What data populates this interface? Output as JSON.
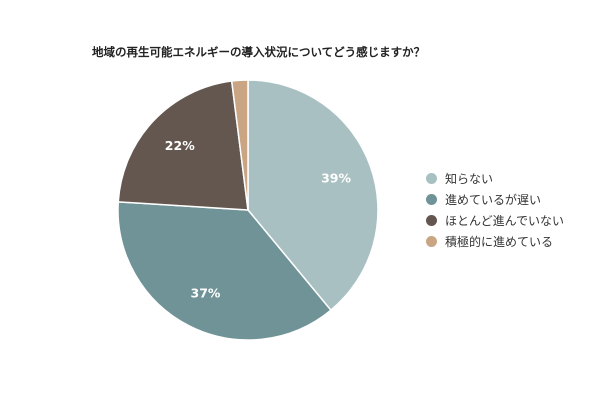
{
  "chart_data": {
    "type": "pie",
    "title": "地域の再生可能エネルギーの導入状況についてどう感じますか？",
    "categories": [
      "知らない",
      "進めているが遅い",
      "ほとんど進んでいない",
      "積極的に進めている"
    ],
    "values": [
      39,
      37,
      22,
      2
    ],
    "data_labels": [
      "39%",
      "37%",
      "22%",
      ""
    ],
    "colors": [
      "#a9c0c2",
      "#6f9397",
      "#645750",
      "#c9a584"
    ],
    "start": "12 o'clock",
    "direction": "clockwise",
    "legend_position": "right"
  }
}
